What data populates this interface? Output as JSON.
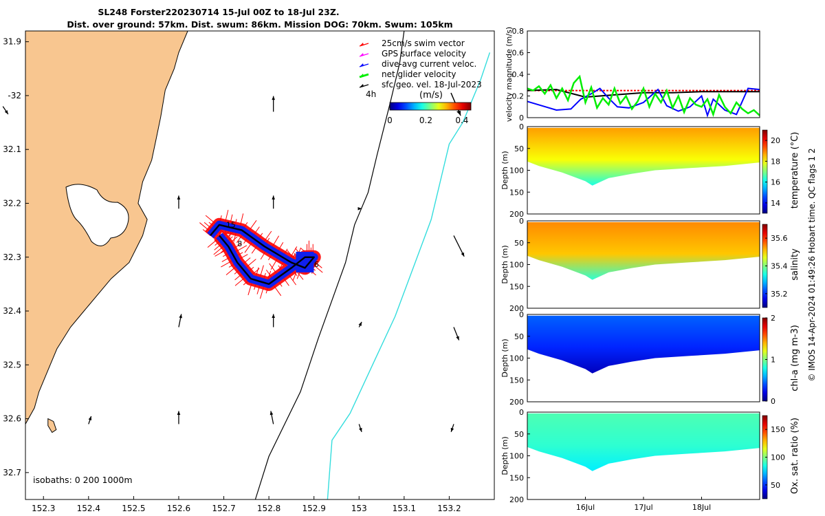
{
  "title": {
    "line1": "SL248 Forster220230714 15-Jul 00Z to 18-Jul 23Z.",
    "line2": "Dist. over ground: 57km. Dist. swum: 86km. Mission DOG: 70km. Swum: 105km"
  },
  "copyright": "© IMOS 14-Apr-2024 01:49:26 Hobart time. QC flags 1  2",
  "chart_data": [
    {
      "type": "map",
      "xlim": [
        152.26,
        153.3
      ],
      "ylim": [
        -32.75,
        -31.88
      ],
      "x_ticks": [
        152.3,
        152.4,
        152.5,
        152.6,
        152.7,
        152.8,
        152.9,
        153,
        153.1,
        153.2
      ],
      "x_tick_labels": [
        "152.3",
        "152.4",
        "152.5",
        "152.6",
        "152.7",
        "152.8",
        "152.9",
        "153",
        "153.1",
        "153.2"
      ],
      "y_ticks": [
        -31.9,
        -32,
        -32.1,
        -32.2,
        -32.3,
        -32.4,
        -32.5,
        -32.6,
        -32.7
      ],
      "y_tick_labels": [
        "31.9",
        "-32",
        "32.1",
        "32.2",
        "32.3",
        "32.4",
        "32.5",
        "32.6",
        "32.7"
      ],
      "isobath_label": "isobaths: 0   200  1000m",
      "legend": {
        "placement": "top-right",
        "entries": [
          {
            "label": "25cm/s swim vector",
            "color": "#ff0000"
          },
          {
            "label": "GPS surface velocity",
            "color": "#ff00ff"
          },
          {
            "label": "dive-avg current veloc.",
            "color": "#0000ff"
          },
          {
            "label": "net glider velocity",
            "color": "#00ee00"
          },
          {
            "label": "sfc geo. vel. 18-Jul-2023",
            "color": "#000000"
          }
        ],
        "extra": "4h"
      },
      "colorbar": {
        "label": "(m/s)",
        "ticks": [
          0,
          0.2,
          0.4
        ],
        "tick_labels": [
          "0",
          "0.2",
          "0.4"
        ],
        "range": [
          0,
          0.45
        ]
      },
      "track_labels": [
        "15",
        "8",
        "6"
      ],
      "coast": [
        [
          152.26,
          -32.61
        ],
        [
          152.28,
          -32.58
        ],
        [
          152.29,
          -32.55
        ],
        [
          152.31,
          -32.51
        ],
        [
          152.33,
          -32.47
        ],
        [
          152.36,
          -32.43
        ],
        [
          152.39,
          -32.4
        ],
        [
          152.42,
          -32.37
        ],
        [
          152.45,
          -32.34
        ],
        [
          152.49,
          -32.31
        ],
        [
          152.52,
          -32.26
        ],
        [
          152.53,
          -32.23
        ],
        [
          152.51,
          -32.2
        ],
        [
          152.52,
          -32.16
        ],
        [
          152.54,
          -32.12
        ],
        [
          152.55,
          -32.08
        ],
        [
          152.56,
          -32.04
        ],
        [
          152.57,
          -31.99
        ],
        [
          152.59,
          -31.95
        ],
        [
          152.6,
          -31.92
        ],
        [
          152.62,
          -31.88
        ]
      ],
      "isobath_200m": [
        [
          152.77,
          -32.75
        ],
        [
          152.8,
          -32.67
        ],
        [
          152.87,
          -32.55
        ],
        [
          152.91,
          -32.45
        ],
        [
          152.94,
          -32.38
        ],
        [
          152.97,
          -32.31
        ],
        [
          152.99,
          -32.24
        ],
        [
          153.02,
          -32.18
        ],
        [
          153.04,
          -32.11
        ],
        [
          153.07,
          -32.01
        ],
        [
          153.09,
          -31.94
        ],
        [
          153.1,
          -31.88
        ]
      ],
      "isobath_1000m": [
        [
          152.93,
          -32.75
        ],
        [
          152.94,
          -32.64
        ],
        [
          152.98,
          -32.59
        ],
        [
          153.03,
          -32.5
        ],
        [
          153.08,
          -32.41
        ],
        [
          153.12,
          -32.32
        ],
        [
          153.16,
          -32.23
        ],
        [
          153.18,
          -32.16
        ],
        [
          153.2,
          -32.09
        ],
        [
          153.23,
          -32.05
        ],
        [
          153.25,
          -32.01
        ],
        [
          153.27,
          -31.97
        ],
        [
          153.29,
          -31.92
        ]
      ],
      "track": [
        [
          152.67,
          -32.26
        ],
        [
          152.69,
          -32.24
        ],
        [
          152.74,
          -32.25
        ],
        [
          152.79,
          -32.28
        ],
        [
          152.85,
          -32.31
        ],
        [
          152.88,
          -32.32
        ],
        [
          152.9,
          -32.3
        ],
        [
          152.88,
          -32.3
        ],
        [
          152.85,
          -32.32
        ],
        [
          152.8,
          -32.35
        ],
        [
          152.76,
          -32.34
        ],
        [
          152.73,
          -32.31
        ],
        [
          152.71,
          -32.28
        ],
        [
          152.69,
          -32.26
        ]
      ],
      "surface_vectors": [
        {
          "lon": 152.21,
          "lat": -32.02,
          "u": 0.02,
          "v": -0.03
        },
        {
          "lon": 152.81,
          "lat": -32.03,
          "u": 0.0,
          "v": 0.06
        },
        {
          "lon": 152.6,
          "lat": -32.21,
          "u": 0.0,
          "v": 0.05
        },
        {
          "lon": 152.81,
          "lat": -32.21,
          "u": 0.0,
          "v": 0.05
        },
        {
          "lon": 153.0,
          "lat": -32.21,
          "u": 0.01,
          "v": 0.0
        },
        {
          "lon": 153.21,
          "lat": -32.26,
          "u": 0.04,
          "v": -0.08
        },
        {
          "lon": 152.6,
          "lat": -32.43,
          "u": 0.01,
          "v": 0.05
        },
        {
          "lon": 152.81,
          "lat": -32.43,
          "u": 0.0,
          "v": 0.05
        },
        {
          "lon": 153.0,
          "lat": -32.43,
          "u": 0.01,
          "v": 0.02
        },
        {
          "lon": 153.21,
          "lat": -32.43,
          "u": 0.02,
          "v": -0.05
        },
        {
          "lon": 152.4,
          "lat": -32.61,
          "u": 0.01,
          "v": 0.03
        },
        {
          "lon": 152.6,
          "lat": -32.61,
          "u": 0.0,
          "v": 0.05
        },
        {
          "lon": 152.81,
          "lat": -32.61,
          "u": -0.01,
          "v": 0.05
        },
        {
          "lon": 153.0,
          "lat": -32.61,
          "u": 0.01,
          "v": -0.03
        },
        {
          "lon": 153.21,
          "lat": -32.61,
          "u": -0.01,
          "v": -0.03
        }
      ]
    },
    {
      "type": "line",
      "ylabel": "velocity magnitude (m/s)",
      "ylim": [
        0,
        0.8
      ],
      "y_ticks": [
        0,
        0.2,
        0.4,
        0.6,
        0.8
      ],
      "y_tick_labels": [
        "0",
        "0.2",
        "0.4",
        "0.6",
        "0.8"
      ],
      "xlim": [
        15,
        19
      ],
      "series": [
        {
          "color": "#ff0000",
          "style": "dashed",
          "x": [
            15,
            19
          ],
          "y": [
            0.25,
            0.25
          ]
        },
        {
          "color": "#000000",
          "style": "solid",
          "x": [
            15.0,
            15.5,
            16.0,
            16.5,
            17.0,
            17.5,
            18.0,
            18.5,
            19.0
          ],
          "y": [
            0.25,
            0.26,
            0.19,
            0.21,
            0.23,
            0.23,
            0.24,
            0.24,
            0.24
          ]
        },
        {
          "color": "#0000ff",
          "style": "solid",
          "x": [
            15.0,
            15.25,
            15.5,
            15.75,
            15.92,
            16.1,
            16.25,
            16.4,
            16.55,
            16.75,
            17.0,
            17.25,
            17.4,
            17.6,
            17.8,
            18.0,
            18.1,
            18.2,
            18.4,
            18.6,
            18.8,
            19.0
          ],
          "y": [
            0.15,
            0.11,
            0.07,
            0.08,
            0.17,
            0.22,
            0.27,
            0.18,
            0.1,
            0.09,
            0.14,
            0.26,
            0.11,
            0.06,
            0.1,
            0.2,
            0.02,
            0.17,
            0.07,
            0.03,
            0.27,
            0.26
          ]
        },
        {
          "color": "#00ee00",
          "style": "solid",
          "x": [
            15.0,
            15.1,
            15.2,
            15.3,
            15.4,
            15.5,
            15.6,
            15.7,
            15.8,
            15.9,
            16.0,
            16.1,
            16.2,
            16.3,
            16.4,
            16.5,
            16.6,
            16.7,
            16.8,
            16.9,
            17.0,
            17.1,
            17.2,
            17.3,
            17.4,
            17.5,
            17.6,
            17.7,
            17.8,
            17.9,
            18.0,
            18.1,
            18.2,
            18.3,
            18.4,
            18.5,
            18.6,
            18.7,
            18.8,
            18.9,
            19.0
          ],
          "y": [
            0.27,
            0.25,
            0.29,
            0.22,
            0.3,
            0.18,
            0.27,
            0.16,
            0.32,
            0.38,
            0.14,
            0.28,
            0.09,
            0.18,
            0.12,
            0.27,
            0.13,
            0.2,
            0.08,
            0.15,
            0.27,
            0.1,
            0.22,
            0.14,
            0.25,
            0.09,
            0.2,
            0.05,
            0.18,
            0.12,
            0.1,
            0.17,
            0.03,
            0.21,
            0.1,
            0.04,
            0.14,
            0.08,
            0.04,
            0.07,
            0.02
          ]
        }
      ]
    },
    {
      "type": "heatmap",
      "name": "temperature",
      "ylabel": "Depth (m)",
      "ylim": [
        200,
        0
      ],
      "y_ticks": [
        0,
        50,
        100,
        150,
        200
      ],
      "y_tick_labels": [
        "0",
        "50",
        "100",
        "150",
        "200"
      ],
      "colorbar": {
        "label": "temperature (°C)",
        "ticks": [
          14,
          16,
          18,
          20
        ],
        "tick_labels": [
          "14",
          "16",
          "18",
          "20"
        ],
        "range": [
          13,
          21
        ]
      },
      "dominant_value": 19.2
    },
    {
      "type": "heatmap",
      "name": "salinity",
      "ylabel": "Depth (m)",
      "ylim": [
        200,
        0
      ],
      "y_ticks": [
        0,
        50,
        100,
        150,
        200
      ],
      "y_tick_labels": [
        "0",
        "50",
        "100",
        "150",
        "200"
      ],
      "colorbar": {
        "label": "salinity",
        "ticks": [
          35.2,
          35.4,
          35.6
        ],
        "tick_labels": [
          "35.2",
          "35.4",
          "35.6"
        ],
        "range": [
          35.1,
          35.7
        ]
      },
      "dominant_value": 35.55
    },
    {
      "type": "heatmap",
      "name": "chl-a",
      "ylabel": "Depth (m)",
      "ylim": [
        200,
        0
      ],
      "y_ticks": [
        0,
        50,
        100,
        150,
        200
      ],
      "y_tick_labels": [
        "0",
        "50",
        "100",
        "150",
        "200"
      ],
      "colorbar": {
        "label": "chl-a (mg m-3)",
        "ticks": [
          0,
          1,
          2
        ],
        "tick_labels": [
          "0",
          "1",
          "2"
        ],
        "range": [
          0,
          2
        ]
      },
      "dominant_value": 0.3
    },
    {
      "type": "heatmap",
      "name": "oxygen",
      "ylabel": "Depth (m)",
      "ylim": [
        200,
        0
      ],
      "y_ticks": [
        0,
        50,
        100,
        150,
        200
      ],
      "y_tick_labels": [
        "0",
        "50",
        "100",
        "150",
        "200"
      ],
      "x_ticks": [
        16,
        17,
        18
      ],
      "x_tick_labels": [
        "16Jul",
        "17Jul",
        "18Jul"
      ],
      "colorbar": {
        "label": "Ox. sat. ratio (%)",
        "ticks": [
          50,
          100,
          150
        ],
        "tick_labels": [
          "50",
          "100",
          "150"
        ],
        "range": [
          25,
          175
        ]
      },
      "dominant_value": 110
    }
  ]
}
